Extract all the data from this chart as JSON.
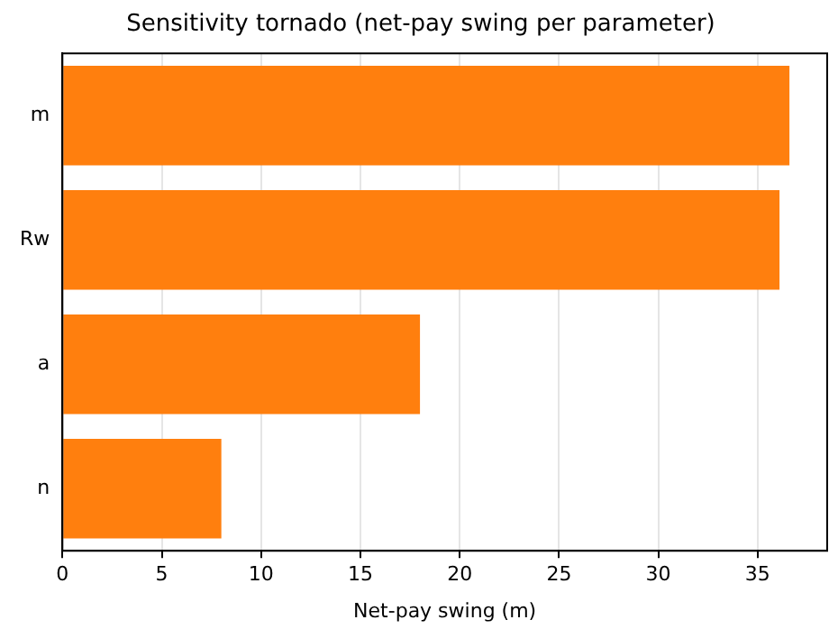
{
  "chart_data": {
    "type": "bar",
    "orientation": "horizontal",
    "title": "Sensitivity tornado (net-pay swing per parameter)",
    "xlabel": "Net-pay swing (m)",
    "categories": [
      "m",
      "Rw",
      "a",
      "n"
    ],
    "values": [
      36.6,
      36.1,
      18.0,
      8.0
    ],
    "color": "#ff7f0e",
    "xlim": [
      0,
      38.5
    ],
    "xticks": [
      0,
      5,
      10,
      15,
      20,
      25,
      30,
      35
    ],
    "grid": "x",
    "legend": false
  }
}
